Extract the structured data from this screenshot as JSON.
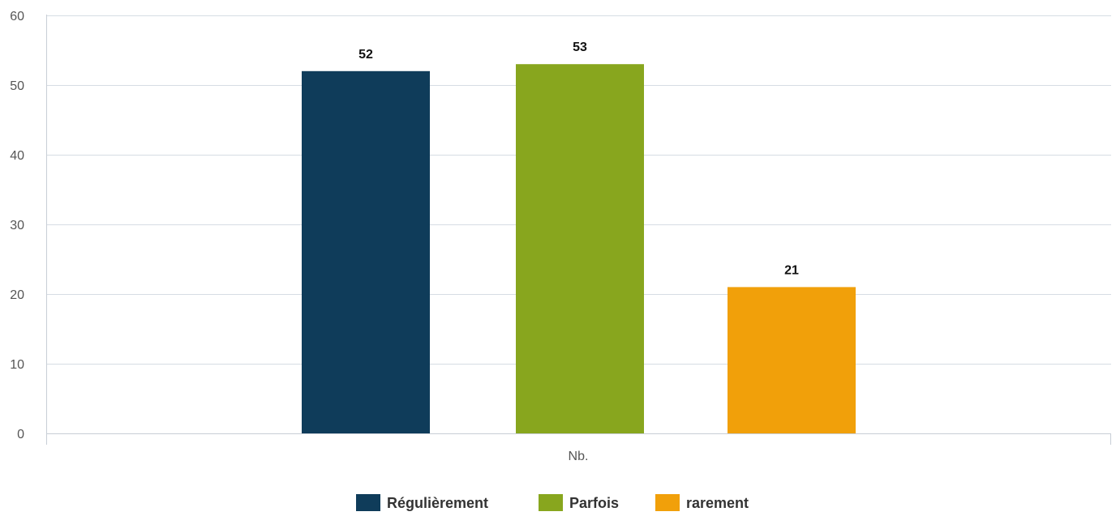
{
  "chart_data": {
    "type": "bar",
    "categories": [
      "Nb."
    ],
    "series": [
      {
        "name": "Régulièrement",
        "values": [
          52
        ],
        "color": "#0f3c5a"
      },
      {
        "name": "Parfois",
        "values": [
          53
        ],
        "color": "#88a61e"
      },
      {
        "name": "rarement",
        "values": [
          21
        ],
        "color": "#f1a00a"
      }
    ],
    "ylim": [
      0,
      60
    ],
    "yticks": [
      "0",
      "10",
      "20",
      "30",
      "40",
      "50",
      "60"
    ],
    "data_labels": [
      "52",
      "53",
      "21"
    ],
    "grid": true,
    "legend": "bottom-center"
  }
}
